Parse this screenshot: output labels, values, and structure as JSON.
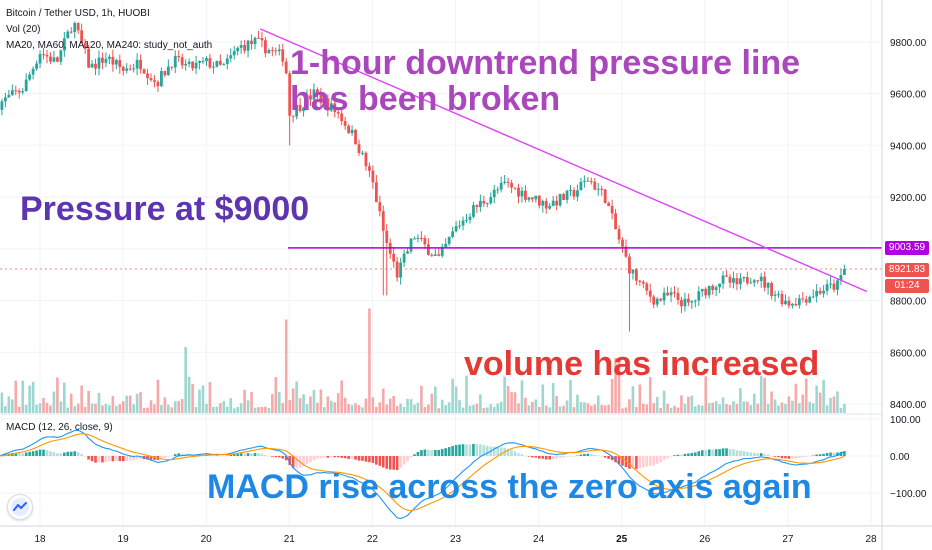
{
  "header": {
    "symbol": "Bitcoin / Tether USD, 1h, HUOBI",
    "volume": "Vol (20)",
    "moving_averages": "MA20, MA60, MA120, MA240: study_not_auth",
    "macd": "MACD (12, 26, close, 9)"
  },
  "annotations": {
    "breakout_line1": "1-hour downtrend pressure line",
    "breakout_line2": "has been broken",
    "pressure": "Pressure at $9000",
    "volume": "volume has increased",
    "macd": "MACD rise across the zero axis again"
  },
  "price_tags": {
    "resistance": "9003.59",
    "last": "8921.83",
    "countdown": "01:24"
  },
  "colors": {
    "bull": "#26a69a",
    "bear": "#ef5350",
    "trendline": "#e040fb",
    "resistance": "#b000e0",
    "annot_purple": "#ab47bc",
    "annot_indigo": "#5e35b1",
    "annot_red": "#e53935",
    "annot_blue": "#1e88e5",
    "macd_line": "#2196f3",
    "signal_line": "#ff9800"
  },
  "icons": {
    "logo": "tradingview-logo-icon"
  },
  "chart_data": {
    "type": "candlestick",
    "symbol": "BTC/USDT",
    "interval": "1h",
    "price_axis": {
      "ticks": [
        8400,
        8600,
        8800,
        9000,
        9200,
        9400,
        9600,
        9800
      ],
      "labels": [
        "8400.00",
        "8600.00",
        "8800.00",
        "9000.00",
        "9200.00",
        "9400.00",
        "9600.00",
        "9800.00"
      ]
    },
    "macd_axis": {
      "ticks": [
        100,
        0,
        -100
      ],
      "labels": [
        "100.00",
        "0.00",
        "−100.00"
      ]
    },
    "x_axis": {
      "ticks": [
        18,
        19,
        20,
        21,
        22,
        23,
        24,
        25,
        26,
        27,
        28
      ],
      "bold": [
        25
      ]
    },
    "resistance": 9003.59,
    "last_price": 8921.83,
    "trendline": [
      {
        "day": 20.65,
        "price": 9850
      },
      {
        "day": 27.95,
        "price": 8835
      }
    ],
    "anchors": [
      [
        17.5,
        9560
      ],
      [
        17.8,
        9620
      ],
      [
        18.0,
        9760
      ],
      [
        18.2,
        9720
      ],
      [
        18.4,
        9880
      ],
      [
        18.6,
        9700
      ],
      [
        18.8,
        9740
      ],
      [
        19.0,
        9690
      ],
      [
        19.2,
        9720
      ],
      [
        19.4,
        9640
      ],
      [
        19.6,
        9730
      ],
      [
        19.8,
        9700
      ],
      [
        20.0,
        9720
      ],
      [
        20.2,
        9700
      ],
      [
        20.4,
        9780
      ],
      [
        20.6,
        9800
      ],
      [
        20.8,
        9760
      ],
      [
        20.95,
        9740
      ],
      [
        21.0,
        9520
      ],
      [
        21.3,
        9600
      ],
      [
        21.6,
        9520
      ],
      [
        21.8,
        9420
      ],
      [
        22.0,
        9260
      ],
      [
        22.15,
        9040
      ],
      [
        22.3,
        8900
      ],
      [
        22.5,
        9050
      ],
      [
        22.8,
        8960
      ],
      [
        23.0,
        9080
      ],
      [
        23.2,
        9150
      ],
      [
        23.4,
        9200
      ],
      [
        23.6,
        9250
      ],
      [
        23.9,
        9200
      ],
      [
        24.1,
        9170
      ],
      [
        24.4,
        9210
      ],
      [
        24.6,
        9270
      ],
      [
        24.8,
        9200
      ],
      [
        24.95,
        9050
      ],
      [
        25.1,
        8920
      ],
      [
        25.25,
        8850
      ],
      [
        25.4,
        8800
      ],
      [
        25.6,
        8820
      ],
      [
        25.8,
        8780
      ],
      [
        26.0,
        8840
      ],
      [
        26.2,
        8880
      ],
      [
        26.4,
        8860
      ],
      [
        26.6,
        8900
      ],
      [
        26.8,
        8840
      ],
      [
        27.0,
        8790
      ],
      [
        27.2,
        8810
      ],
      [
        27.4,
        8840
      ],
      [
        27.6,
        8860
      ],
      [
        27.68,
        8921.83
      ]
    ],
    "breakouts": [
      {
        "day": 21.0,
        "price": 9400
      },
      {
        "day": 22.15,
        "price": 8820
      },
      {
        "day": 25.1,
        "price": 8680
      }
    ],
    "volume_spikes": [
      {
        "day": 20.95,
        "value": 170
      },
      {
        "day": 21.95,
        "value": 190
      },
      {
        "day": 24.95,
        "value": 100
      },
      {
        "day": 19.75,
        "value": 120
      }
    ]
  }
}
